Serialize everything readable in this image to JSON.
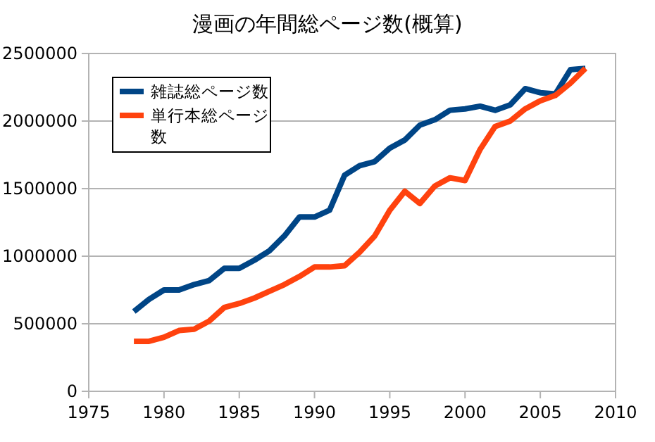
{
  "chart_data": {
    "type": "line",
    "title": "漫画の年間総ページ数(概算)",
    "x": [
      1978,
      1979,
      1980,
      1981,
      1982,
      1983,
      1984,
      1985,
      1986,
      1987,
      1988,
      1989,
      1990,
      1991,
      1992,
      1993,
      1994,
      1995,
      1996,
      1997,
      1998,
      1999,
      2000,
      2001,
      2002,
      2003,
      2004,
      2005,
      2006,
      2007,
      2008
    ],
    "series": [
      {
        "name": "雑誌総ページ数",
        "color": "#004586",
        "values": [
          590000,
          680000,
          750000,
          750000,
          790000,
          820000,
          910000,
          910000,
          970000,
          1040000,
          1150000,
          1290000,
          1290000,
          1340000,
          1600000,
          1670000,
          1700000,
          1800000,
          1860000,
          1970000,
          2010000,
          2080000,
          2090000,
          2110000,
          2080000,
          2120000,
          2240000,
          2210000,
          2200000,
          2380000,
          2390000
        ]
      },
      {
        "name": "単行本総ページ数",
        "color": "#ff420e",
        "values": [
          370000,
          370000,
          400000,
          450000,
          460000,
          520000,
          620000,
          650000,
          690000,
          740000,
          790000,
          850000,
          920000,
          920000,
          930000,
          1030000,
          1150000,
          1340000,
          1480000,
          1390000,
          1520000,
          1580000,
          1560000,
          1790000,
          1960000,
          2000000,
          2090000,
          2150000,
          2190000,
          2280000,
          2390000
        ]
      }
    ],
    "xlim": [
      1975,
      2010
    ],
    "xticks": [
      1975,
      1980,
      1985,
      1990,
      1995,
      2000,
      2005,
      2010
    ],
    "ylim": [
      0,
      2500000
    ],
    "yticks": [
      0,
      500000,
      1000000,
      1500000,
      2000000,
      2500000
    ],
    "grid": "y",
    "legend": "top left",
    "marker": "none",
    "line_style": "solid"
  }
}
